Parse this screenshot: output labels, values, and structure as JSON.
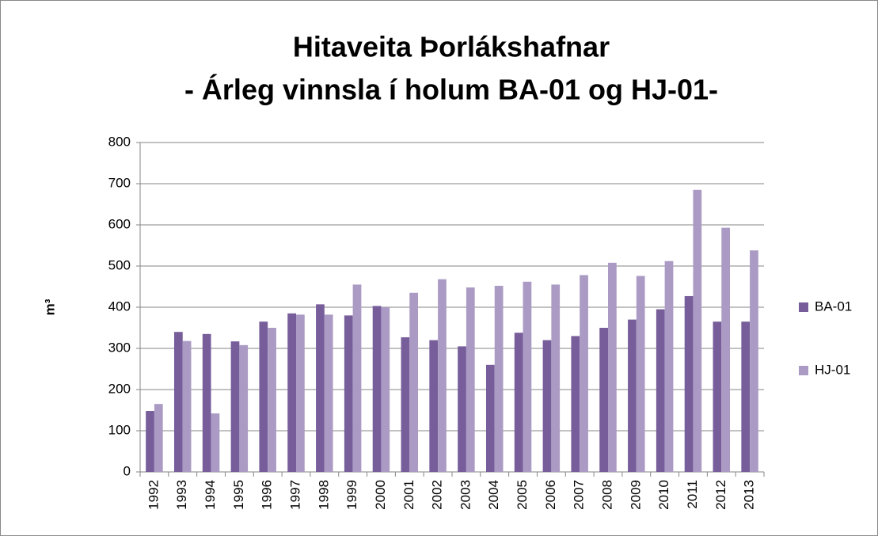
{
  "chart_data": {
    "type": "bar",
    "title": "Hitaveita Þorlákshafnar",
    "subtitle": "- Árleg vinnsla í holum BA-01 og HJ-01-",
    "y_label": "m³",
    "categories": [
      "1992",
      "1993",
      "1994",
      "1995",
      "1996",
      "1997",
      "1998",
      "1999",
      "2000",
      "2001",
      "2002",
      "2003",
      "2004",
      "2005",
      "2006",
      "2007",
      "2008",
      "2009",
      "2010",
      "2011",
      "2012",
      "2013"
    ],
    "series": [
      {
        "name": "BA-01",
        "color": "#775e9b",
        "values": [
          148,
          340,
          335,
          317,
          365,
          385,
          407,
          380,
          403,
          327,
          320,
          305,
          260,
          338,
          320,
          330,
          350,
          370,
          395,
          427,
          365,
          365
        ]
      },
      {
        "name": "HJ-01",
        "color": "#ab9bc4",
        "values": [
          165,
          318,
          142,
          308,
          350,
          382,
          382,
          455,
          400,
          435,
          468,
          448,
          452,
          462,
          455,
          478,
          508,
          476,
          512,
          685,
          593,
          538
        ]
      }
    ],
    "ylim": [
      0,
      800
    ],
    "yticks": [
      0,
      100,
      200,
      300,
      400,
      500,
      600,
      700,
      800
    ],
    "grid": true,
    "legend": "right"
  }
}
